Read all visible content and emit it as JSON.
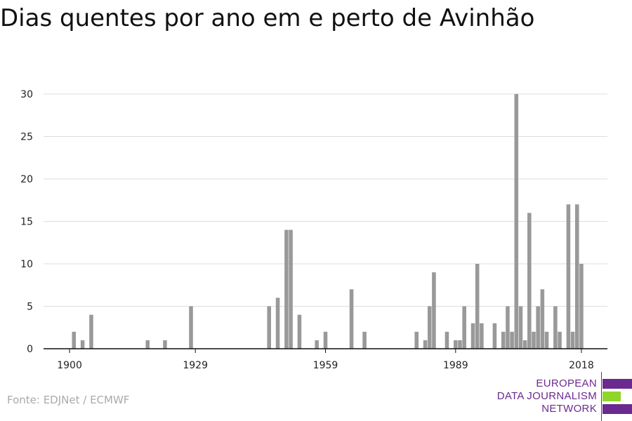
{
  "title": "Dias quentes por ano em e perto de Avinhão",
  "source": "Fonte: EDJNet / ECMWF",
  "logo": {
    "lines": [
      "EUROPEAN",
      "DATA JOURNALISM",
      "NETWORK"
    ],
    "text_color": "#6a2a8f",
    "bar_colors": [
      "#6a2a8f",
      "#8fd62b",
      "#6a2a8f"
    ]
  },
  "chart_data": {
    "type": "bar",
    "title": "Dias quentes por ano em e perto de Avinhão",
    "xlabel": "",
    "ylabel": "",
    "x_ticks": [
      1900,
      1929,
      1959,
      1989,
      2018
    ],
    "y_ticks": [
      0,
      5,
      10,
      15,
      20,
      25,
      30
    ],
    "xlim": [
      1894,
      2024
    ],
    "ylim": [
      0,
      30
    ],
    "grid": true,
    "bar_color": "#999999",
    "points": [
      {
        "x": 1901,
        "y": 2
      },
      {
        "x": 1903,
        "y": 1
      },
      {
        "x": 1905,
        "y": 4
      },
      {
        "x": 1918,
        "y": 1
      },
      {
        "x": 1922,
        "y": 1
      },
      {
        "x": 1928,
        "y": 5
      },
      {
        "x": 1946,
        "y": 5
      },
      {
        "x": 1948,
        "y": 6
      },
      {
        "x": 1950,
        "y": 14
      },
      {
        "x": 1951,
        "y": 14
      },
      {
        "x": 1953,
        "y": 4
      },
      {
        "x": 1957,
        "y": 1
      },
      {
        "x": 1959,
        "y": 2
      },
      {
        "x": 1965,
        "y": 7
      },
      {
        "x": 1968,
        "y": 2
      },
      {
        "x": 1980,
        "y": 2
      },
      {
        "x": 1982,
        "y": 1
      },
      {
        "x": 1983,
        "y": 5
      },
      {
        "x": 1984,
        "y": 9
      },
      {
        "x": 1987,
        "y": 2
      },
      {
        "x": 1989,
        "y": 1
      },
      {
        "x": 1990,
        "y": 1
      },
      {
        "x": 1991,
        "y": 5
      },
      {
        "x": 1993,
        "y": 3
      },
      {
        "x": 1994,
        "y": 10
      },
      {
        "x": 1995,
        "y": 3
      },
      {
        "x": 1998,
        "y": 3
      },
      {
        "x": 2000,
        "y": 2
      },
      {
        "x": 2001,
        "y": 5
      },
      {
        "x": 2002,
        "y": 2
      },
      {
        "x": 2003,
        "y": 30
      },
      {
        "x": 2004,
        "y": 5
      },
      {
        "x": 2005,
        "y": 1
      },
      {
        "x": 2006,
        "y": 16
      },
      {
        "x": 2007,
        "y": 2
      },
      {
        "x": 2008,
        "y": 5
      },
      {
        "x": 2009,
        "y": 7
      },
      {
        "x": 2010,
        "y": 2
      },
      {
        "x": 2012,
        "y": 5
      },
      {
        "x": 2013,
        "y": 2
      },
      {
        "x": 2015,
        "y": 17
      },
      {
        "x": 2016,
        "y": 2
      },
      {
        "x": 2017,
        "y": 17
      },
      {
        "x": 2018,
        "y": 10
      }
    ]
  }
}
